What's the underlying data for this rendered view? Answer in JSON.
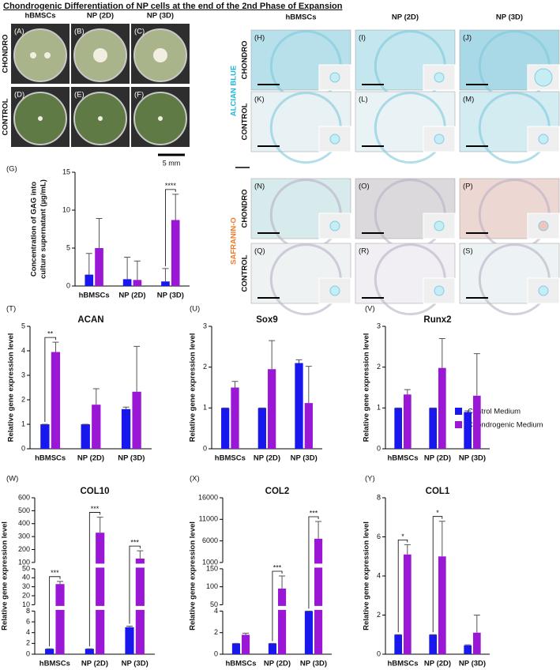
{
  "title": "Chondrogenic Differentiation of NP cells at the end of the 2nd Phase of Expansion",
  "photo_panel": {
    "columns": [
      "hBMSCs",
      "NP (2D)",
      "NP (3D)"
    ],
    "rows": [
      "CHONDRO",
      "CONTROL"
    ],
    "panels": [
      "(A)",
      "(B)",
      "(C)",
      "(D)",
      "(E)",
      "(F)"
    ],
    "scale_bar": "5 mm"
  },
  "histology_panel": {
    "columns": [
      "hBMSCs",
      "NP (2D)",
      "NP (3D)"
    ],
    "stains": [
      "ALCIAN BLUE",
      "SAFRANIN-O"
    ],
    "rows": [
      "CHONDRO",
      "CONTROL",
      "CHONDRO",
      "CONTROL"
    ],
    "panels": [
      "(H)",
      "(I)",
      "(J)",
      "(K)",
      "(L)",
      "(M)",
      "(N)",
      "(O)",
      "(P)",
      "(Q)",
      "(R)",
      "(S)"
    ]
  },
  "legend": [
    {
      "name": "Control Medium",
      "color": "#1717ee"
    },
    {
      "name": "Chondrogenic Medium",
      "color": "#9b17d6"
    }
  ],
  "chart_data": [
    {
      "type": "bar",
      "panel": "(G)",
      "y_label": [
        "Concentration of GAG into",
        "culture supernatant (µg/mL)"
      ],
      "categories": [
        "hBMSCs",
        "NP (2D)",
        "NP (3D)"
      ],
      "series": [
        {
          "color": "#1717ee",
          "values": [
            1.5,
            0.9,
            0.6
          ],
          "errors": [
            2.8,
            2.9,
            1.7
          ]
        },
        {
          "color": "#9b17d6",
          "values": [
            5.0,
            0.8,
            8.7
          ],
          "errors": [
            3.9,
            2.5,
            3.4
          ]
        }
      ],
      "ylim": [
        0,
        15
      ],
      "yticks": [
        0,
        5,
        10,
        15
      ],
      "annotations": [
        {
          "category": "NP (3D)",
          "text": "****"
        }
      ]
    },
    {
      "type": "bar",
      "panel": "(T)",
      "title": "ACAN",
      "y_label": "Relative gene expression level",
      "categories": [
        "hBMSCs",
        "NP (2D)",
        "NP (3D)"
      ],
      "series": [
        {
          "color": "#1717ee",
          "values": [
            1,
            1,
            1.62
          ],
          "errors": [
            0,
            0,
            0.08
          ]
        },
        {
          "color": "#9b17d6",
          "values": [
            3.95,
            1.8,
            2.33
          ],
          "errors": [
            0.4,
            0.65,
            1.85
          ]
        }
      ],
      "ylim": [
        0,
        5
      ],
      "yticks": [
        0,
        1,
        2,
        3,
        4,
        5
      ],
      "annotations": [
        {
          "category": "hBMSCs",
          "text": "**"
        }
      ]
    },
    {
      "type": "bar",
      "panel": "(U)",
      "title": "Sox9",
      "y_label": "Relative gene expression level",
      "categories": [
        "hBMSCs",
        "NP (2D)",
        "NP (3D)"
      ],
      "series": [
        {
          "color": "#1717ee",
          "values": [
            1,
            1,
            2.1
          ],
          "errors": [
            0,
            0,
            0.08
          ]
        },
        {
          "color": "#9b17d6",
          "values": [
            1.5,
            1.95,
            1.12
          ],
          "errors": [
            0.15,
            0.7,
            0.9
          ]
        }
      ],
      "ylim": [
        0,
        3
      ],
      "yticks": [
        0,
        1,
        2,
        3
      ]
    },
    {
      "type": "bar",
      "panel": "(V)",
      "title": "Runx2",
      "y_label": "Relative gene expression level",
      "categories": [
        "hBMSCs",
        "NP (2D)",
        "NP (3D)"
      ],
      "series": [
        {
          "color": "#1717ee",
          "values": [
            1,
            1,
            0.9
          ],
          "errors": [
            0,
            0,
            0.03
          ]
        },
        {
          "color": "#9b17d6",
          "values": [
            1.33,
            1.98,
            1.3
          ],
          "errors": [
            0.12,
            0.72,
            1.03
          ]
        }
      ],
      "ylim": [
        0,
        3
      ],
      "yticks": [
        0,
        1,
        2,
        3
      ]
    },
    {
      "type": "bar",
      "panel": "(W)",
      "title": "COL10",
      "y_label": "Relative gene expression level",
      "categories": [
        "hBMSCs",
        "NP (2D)",
        "NP (3D)"
      ],
      "series": [
        {
          "color": "#1717ee",
          "values": [
            1,
            1,
            5
          ],
          "errors": [
            0,
            0,
            0.2
          ]
        },
        {
          "color": "#9b17d6",
          "values": [
            33,
            330,
            130
          ],
          "errors": [
            3,
            120,
            60
          ]
        }
      ],
      "y_segments": [
        {
          "ylim": [
            0,
            8
          ],
          "yticks": [
            0,
            2,
            4,
            6,
            8
          ]
        },
        {
          "ylim": [
            10,
            50
          ],
          "yticks": [
            10,
            20,
            30,
            40,
            50
          ]
        },
        {
          "ylim": [
            100,
            600
          ],
          "yticks": [
            100,
            200,
            300,
            400,
            500,
            600
          ]
        }
      ],
      "annotations": [
        {
          "category": "hBMSCs",
          "text": "***"
        },
        {
          "category": "NP (2D)",
          "text": "***"
        },
        {
          "category": "NP (3D)",
          "text": "***"
        }
      ]
    },
    {
      "type": "bar",
      "panel": "(X)",
      "title": "COL2",
      "y_label": "Relative gene expression level",
      "categories": [
        "hBMSCs",
        "NP (2D)",
        "NP (3D)"
      ],
      "series": [
        {
          "color": "#1717ee",
          "values": [
            1,
            1,
            45
          ],
          "errors": [
            0,
            0,
            2
          ]
        },
        {
          "color": "#9b17d6",
          "values": [
            1.8,
            95,
            6500
          ],
          "errors": [
            0.15,
            35,
            4000
          ]
        }
      ],
      "y_segments": [
        {
          "ylim": [
            0,
            4
          ],
          "yticks": [
            0,
            2,
            4
          ]
        },
        {
          "ylim": [
            50,
            150
          ],
          "yticks": [
            50,
            100,
            150
          ]
        },
        {
          "ylim": [
            1000,
            16000
          ],
          "yticks": [
            1000,
            6000,
            11000,
            16000
          ]
        }
      ],
      "annotations": [
        {
          "category": "NP (2D)",
          "text": "***"
        },
        {
          "category": "NP (3D)",
          "text": "***"
        }
      ]
    },
    {
      "type": "bar",
      "panel": "(Y)",
      "title": "COL1",
      "y_label": "Relative gene expression level",
      "categories": [
        "hBMSCs",
        "NP (2D)",
        "NP (3D)"
      ],
      "series": [
        {
          "color": "#1717ee",
          "values": [
            1,
            1,
            0.45
          ],
          "errors": [
            0,
            0,
            0.03
          ]
        },
        {
          "color": "#9b17d6",
          "values": [
            5.1,
            5.0,
            1.1
          ],
          "errors": [
            0.5,
            1.8,
            0.9
          ]
        }
      ],
      "ylim": [
        0,
        8
      ],
      "yticks": [
        0,
        2,
        4,
        6,
        8
      ],
      "annotations": [
        {
          "category": "hBMSCs",
          "text": "*"
        },
        {
          "category": "NP (2D)",
          "text": "*"
        }
      ]
    }
  ]
}
